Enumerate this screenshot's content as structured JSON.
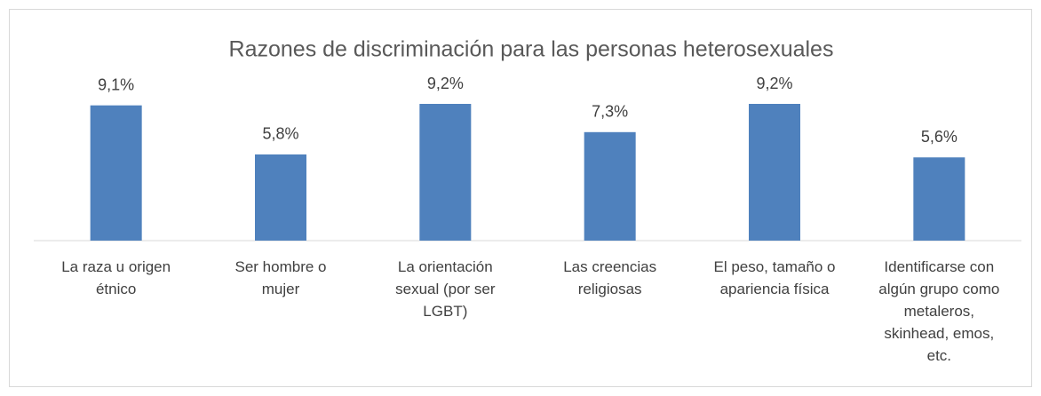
{
  "chart_data": {
    "type": "bar",
    "title": "Razones de discriminación para las  personas heterosexuales",
    "categories": [
      "La raza u origen étnico",
      "Ser hombre o mujer",
      "La orientación sexual (por ser LGBT)",
      "Las creencias religiosas",
      "El peso, tamaño o apariencia física",
      "Identificarse con algún grupo como metaleros, skinhead, emos, etc."
    ],
    "values": [
      9.1,
      5.8,
      9.2,
      7.3,
      9.2,
      5.6
    ],
    "value_labels": [
      "9,1%",
      "5,8%",
      "9,2%",
      "7,3%",
      "9,2%",
      "5,6%"
    ],
    "color": "#4f81bd"
  }
}
